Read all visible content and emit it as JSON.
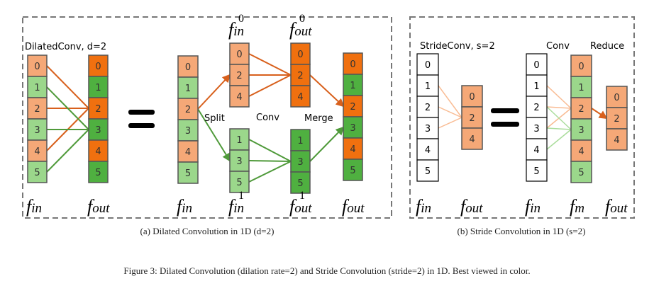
{
  "colors": {
    "light_orange": "#f5a877",
    "dark_orange": "#f0700f",
    "light_green": "#9bd78b",
    "dark_green": "#4fb040",
    "white": "#ffffff",
    "line_orange": "#d8601c",
    "line_green": "#4f9a3a",
    "line_orange_light": "#f9bc94",
    "line_green_light": "#aadd9c",
    "dashed_border": "#777777"
  },
  "panel_a": {
    "title": "DilatedConv, d=2",
    "split_label": "Split",
    "conv_label": "Conv",
    "merge_label": "Merge",
    "caption": "(a) Dilated Convolution in 1D (d=2)",
    "columns": {
      "a_fin": {
        "label": {
          "base": "f",
          "sub": "in",
          "sup": ""
        },
        "cells": [
          [
            "0",
            "light_orange"
          ],
          [
            "1",
            "light_green"
          ],
          [
            "2",
            "light_orange"
          ],
          [
            "3",
            "light_green"
          ],
          [
            "4",
            "light_orange"
          ],
          [
            "5",
            "light_green"
          ]
        ]
      },
      "a_fout": {
        "label": {
          "base": "f",
          "sub": "out",
          "sup": ""
        },
        "cells": [
          [
            "0",
            "dark_orange"
          ],
          [
            "1",
            "dark_green"
          ],
          [
            "2",
            "dark_orange"
          ],
          [
            "3",
            "dark_green"
          ],
          [
            "4",
            "dark_orange"
          ],
          [
            "5",
            "dark_green"
          ]
        ]
      },
      "a_fin2": {
        "label": {
          "base": "f",
          "sub": "in",
          "sup": ""
        },
        "cells": [
          [
            "0",
            "light_orange"
          ],
          [
            "1",
            "light_green"
          ],
          [
            "2",
            "light_orange"
          ],
          [
            "3",
            "light_green"
          ],
          [
            "4",
            "light_orange"
          ],
          [
            "5",
            "light_green"
          ]
        ]
      },
      "a_fin0": {
        "label": {
          "base": "f",
          "sub": "in",
          "sup": "0"
        },
        "cells": [
          [
            "0",
            "light_orange"
          ],
          [
            "2",
            "light_orange"
          ],
          [
            "4",
            "light_orange"
          ]
        ]
      },
      "a_fout0": {
        "label": {
          "base": "f",
          "sub": "out",
          "sup": "0"
        },
        "cells": [
          [
            "0",
            "dark_orange"
          ],
          [
            "2",
            "dark_orange"
          ],
          [
            "4",
            "dark_orange"
          ]
        ]
      },
      "a_fin1": {
        "label": {
          "base": "f",
          "sub": "in",
          "sup": "1"
        },
        "cells": [
          [
            "1",
            "light_green"
          ],
          [
            "3",
            "light_green"
          ],
          [
            "5",
            "light_green"
          ]
        ]
      },
      "a_fout1": {
        "label": {
          "base": "f",
          "sub": "out",
          "sup": "1"
        },
        "cells": [
          [
            "1",
            "dark_green"
          ],
          [
            "3",
            "dark_green"
          ],
          [
            "5",
            "dark_green"
          ]
        ]
      },
      "a_fout2": {
        "label": {
          "base": "f",
          "sub": "out",
          "sup": ""
        },
        "cells": [
          [
            "0",
            "dark_orange"
          ],
          [
            "1",
            "dark_green"
          ],
          [
            "2",
            "dark_orange"
          ],
          [
            "3",
            "dark_green"
          ],
          [
            "4",
            "dark_orange"
          ],
          [
            "5",
            "dark_green"
          ]
        ]
      }
    }
  },
  "panel_b": {
    "title": "StrideConv, s=2",
    "conv_label": "Conv",
    "reduce_label": "Reduce",
    "caption": "(b) Stride Convolution in 1D (s=2)",
    "columns": {
      "b_fin": {
        "label": {
          "base": "f",
          "sub": "in",
          "sup": ""
        },
        "cells": [
          [
            "0",
            "white"
          ],
          [
            "1",
            "white"
          ],
          [
            "2",
            "white"
          ],
          [
            "3",
            "white"
          ],
          [
            "4",
            "white"
          ],
          [
            "5",
            "white"
          ]
        ]
      },
      "b_fout": {
        "label": {
          "base": "f",
          "sub": "out",
          "sup": ""
        },
        "cells": [
          [
            "0",
            "light_orange"
          ],
          [
            "2",
            "light_orange"
          ],
          [
            "4",
            "light_orange"
          ]
        ]
      },
      "b_fin2": {
        "label": {
          "base": "f",
          "sub": "in",
          "sup": ""
        },
        "cells": [
          [
            "0",
            "white"
          ],
          [
            "1",
            "white"
          ],
          [
            "2",
            "white"
          ],
          [
            "3",
            "white"
          ],
          [
            "4",
            "white"
          ],
          [
            "5",
            "white"
          ]
        ]
      },
      "b_fm": {
        "label": {
          "base": "f",
          "sub": "m",
          "sup": ""
        },
        "cells": [
          [
            "0",
            "light_orange"
          ],
          [
            "1",
            "light_green"
          ],
          [
            "2",
            "light_orange"
          ],
          [
            "3",
            "light_green"
          ],
          [
            "4",
            "light_orange"
          ],
          [
            "5",
            "light_green"
          ]
        ]
      },
      "b_fout2": {
        "label": {
          "base": "f",
          "sub": "out",
          "sup": ""
        },
        "cells": [
          [
            "0",
            "light_orange"
          ],
          [
            "2",
            "light_orange"
          ],
          [
            "4",
            "light_orange"
          ]
        ]
      }
    }
  },
  "figure_caption": "Figure 3: Dilated Convolution (dilation rate=2) and Stride Convolution (stride=2) in 1D. Best viewed in color."
}
